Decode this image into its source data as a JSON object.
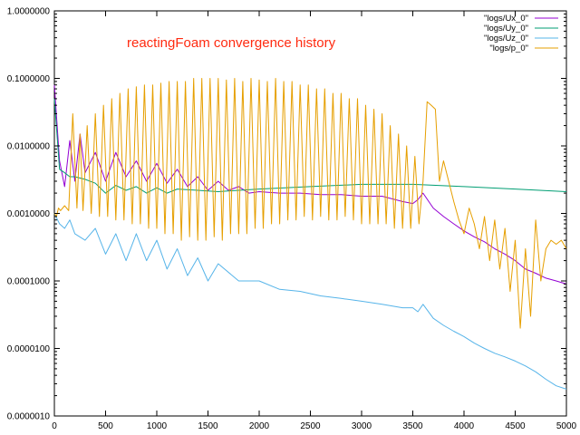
{
  "chart_data": {
    "type": "line",
    "title": "reactingFoam convergence history",
    "title_color": "#ff2a10",
    "xlabel": "",
    "ylabel": "",
    "xlim": [
      0,
      5000
    ],
    "ylim": [
      1e-06,
      1.0
    ],
    "yscale": "log",
    "grid": false,
    "legend_position": "top-right",
    "x_ticks": [
      0,
      500,
      1000,
      1500,
      2000,
      2500,
      3000,
      3500,
      4000,
      4500,
      5000
    ],
    "x_tick_labels": [
      "0",
      "500",
      "1000",
      "1500",
      "2000",
      "2500",
      "3000",
      "3500",
      "4000",
      "4500",
      "5000"
    ],
    "y_ticks": [
      1e-06,
      1e-05,
      0.0001,
      0.001,
      0.01,
      0.1,
      1.0
    ],
    "y_tick_labels": [
      "0.0000010",
      "0.0000100",
      "0.0001000",
      "0.0010000",
      "0.0100000",
      "0.1000000",
      "1.0000000"
    ],
    "series": [
      {
        "name": "\"logs/Ux_0\"",
        "color": "#9400d3",
        "x": [
          0,
          50,
          100,
          150,
          200,
          250,
          300,
          400,
          500,
          600,
          700,
          800,
          900,
          1000,
          1100,
          1200,
          1300,
          1400,
          1500,
          1600,
          1700,
          1800,
          1900,
          2000,
          2200,
          2400,
          2600,
          2800,
          3000,
          3200,
          3400,
          3500,
          3550,
          3600,
          3700,
          3800,
          3900,
          4000,
          4100,
          4200,
          4300,
          4400,
          4500,
          4600,
          4700,
          4800,
          4900,
          5000
        ],
        "y": [
          0.08,
          0.006,
          0.0025,
          0.012,
          0.003,
          0.015,
          0.004,
          0.008,
          0.003,
          0.008,
          0.0035,
          0.006,
          0.003,
          0.0055,
          0.0028,
          0.0045,
          0.0025,
          0.0035,
          0.0022,
          0.003,
          0.0022,
          0.0025,
          0.002,
          0.0021,
          0.002,
          0.002,
          0.0019,
          0.0019,
          0.0018,
          0.0018,
          0.0015,
          0.0014,
          0.0016,
          0.002,
          0.0012,
          0.0009,
          0.0007,
          0.00055,
          0.00045,
          0.00038,
          0.0003,
          0.00025,
          0.0002,
          0.00015,
          0.00013,
          0.00011,
          0.0001,
          9e-05
        ]
      },
      {
        "name": "\"logs/Uy_0\"",
        "color": "#009e73",
        "x": [
          0,
          50,
          100,
          150,
          200,
          300,
          400,
          500,
          600,
          700,
          800,
          900,
          1000,
          1100,
          1200,
          1400,
          1600,
          1800,
          2000,
          2500,
          3000,
          3500,
          4000,
          4500,
          5000
        ],
        "y": [
          0.05,
          0.0045,
          0.004,
          0.0035,
          0.0035,
          0.0032,
          0.0028,
          0.002,
          0.0026,
          0.0022,
          0.0025,
          0.002,
          0.0024,
          0.002,
          0.0023,
          0.0022,
          0.0021,
          0.0022,
          0.0023,
          0.0025,
          0.0027,
          0.0027,
          0.0025,
          0.0023,
          0.0021
        ]
      },
      {
        "name": "\"logs/Uz_0\"",
        "color": "#56b4e9",
        "x": [
          0,
          50,
          100,
          150,
          200,
          300,
          400,
          500,
          600,
          700,
          800,
          900,
          1000,
          1100,
          1200,
          1300,
          1400,
          1500,
          1600,
          1800,
          2000,
          2200,
          2400,
          2600,
          2800,
          3000,
          3200,
          3400,
          3500,
          3550,
          3600,
          3700,
          3800,
          3900,
          4000,
          4100,
          4200,
          4300,
          4400,
          4500,
          4600,
          4700,
          4800,
          4900,
          5000
        ],
        "y": [
          0.001,
          0.0007,
          0.0006,
          0.0008,
          0.0005,
          0.0004,
          0.0006,
          0.00025,
          0.0005,
          0.0002,
          0.0005,
          0.0002,
          0.0004,
          0.00015,
          0.0003,
          0.00012,
          0.00022,
          0.0001,
          0.00018,
          0.0001,
          0.0001,
          7.5e-05,
          7e-05,
          6e-05,
          5.5e-05,
          5e-05,
          4.5e-05,
          4e-05,
          4e-05,
          3.5e-05,
          4.5e-05,
          2.8e-05,
          2.2e-05,
          1.8e-05,
          1.5e-05,
          1.2e-05,
          1e-05,
          8.5e-06,
          7.5e-06,
          6.5e-06,
          5.5e-06,
          4.5e-06,
          3.5e-06,
          2.8e-06,
          2.5e-06
        ]
      },
      {
        "name": "\"logs/p_0\"",
        "color": "#e69f00",
        "x": [
          0,
          20,
          40,
          60,
          100,
          140,
          180,
          220,
          250,
          280,
          320,
          360,
          400,
          440,
          480,
          520,
          560,
          600,
          640,
          680,
          720,
          760,
          800,
          840,
          880,
          920,
          960,
          1000,
          1040,
          1080,
          1120,
          1160,
          1200,
          1240,
          1280,
          1320,
          1360,
          1400,
          1440,
          1480,
          1520,
          1560,
          1600,
          1640,
          1680,
          1720,
          1760,
          1800,
          1840,
          1880,
          1920,
          1960,
          2000,
          2040,
          2080,
          2120,
          2160,
          2200,
          2240,
          2280,
          2320,
          2360,
          2400,
          2440,
          2480,
          2520,
          2560,
          2600,
          2640,
          2680,
          2720,
          2760,
          2800,
          2840,
          2880,
          2920,
          2960,
          3000,
          3040,
          3080,
          3120,
          3160,
          3200,
          3240,
          3280,
          3320,
          3360,
          3400,
          3440,
          3480,
          3520,
          3560,
          3600,
          3640,
          3680,
          3720,
          3760,
          3800,
          3850,
          3900,
          3950,
          4000,
          4050,
          4100,
          4150,
          4200,
          4250,
          4300,
          4350,
          4400,
          4450,
          4500,
          4550,
          4600,
          4650,
          4700,
          4750,
          4800,
          4850,
          4900,
          4950,
          5000
        ],
        "y": [
          0.001,
          0.0009,
          0.0012,
          0.0011,
          0.0013,
          0.0011,
          0.03,
          0.0012,
          0.015,
          0.0011,
          0.02,
          0.001,
          0.03,
          0.0009,
          0.04,
          0.0009,
          0.05,
          0.0008,
          0.06,
          0.0008,
          0.07,
          0.0007,
          0.075,
          0.0007,
          0.08,
          0.0006,
          0.08,
          0.0006,
          0.085,
          0.0005,
          0.09,
          0.0005,
          0.09,
          0.0004,
          0.09,
          0.00045,
          0.1,
          0.0004,
          0.1,
          0.0004,
          0.1,
          0.00045,
          0.1,
          0.0004,
          0.095,
          0.0005,
          0.1,
          0.0005,
          0.09,
          0.0005,
          0.1,
          0.0006,
          0.095,
          0.0006,
          0.09,
          0.0007,
          0.1,
          0.0007,
          0.09,
          0.0008,
          0.09,
          0.0008,
          0.08,
          0.0009,
          0.08,
          0.0008,
          0.07,
          0.0009,
          0.07,
          0.0008,
          0.06,
          0.0008,
          0.06,
          0.0009,
          0.05,
          0.0008,
          0.05,
          0.0007,
          0.04,
          0.0007,
          0.035,
          0.0007,
          0.03,
          0.0007,
          0.02,
          0.0006,
          0.015,
          0.0006,
          0.01,
          0.0006,
          0.007,
          0.0007,
          0.003,
          0.045,
          0.04,
          0.035,
          0.003,
          0.006,
          0.003,
          0.0015,
          0.0008,
          0.0005,
          0.0012,
          0.0007,
          0.0003,
          0.0009,
          0.0002,
          0.0008,
          0.00015,
          0.0006,
          7e-05,
          0.0004,
          2e-05,
          0.0003,
          3e-05,
          0.0008,
          0.0001,
          0.0003,
          0.0004,
          0.00035,
          0.0004,
          0.0003
        ]
      }
    ]
  }
}
